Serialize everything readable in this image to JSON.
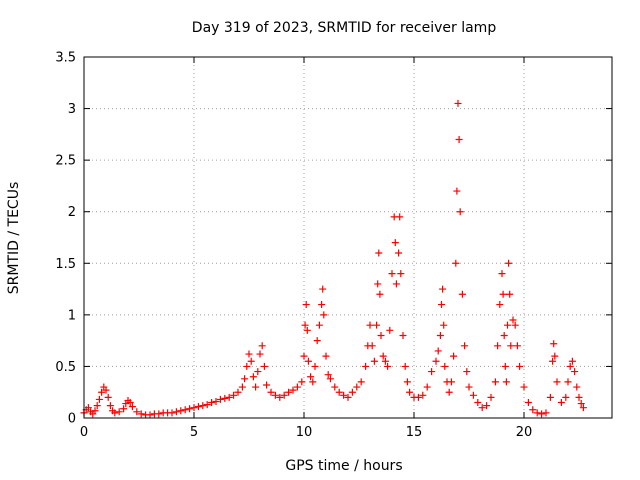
{
  "chart_data": {
    "type": "scatter",
    "title": "Day 319 of 2023, SRMTID for receiver lamp",
    "xlabel": "GPS time / hours",
    "ylabel": "SRMTID / TECUs",
    "xlim": [
      0,
      24
    ],
    "ylim": [
      0,
      3.5
    ],
    "xticks": [
      0,
      5,
      10,
      15,
      20
    ],
    "xtick_labels": [
      "0",
      "5",
      "10",
      "15",
      "20"
    ],
    "yticks": [
      0,
      0.5,
      1,
      1.5,
      2,
      2.5,
      3,
      3.5
    ],
    "ytick_labels": [
      "0",
      "0.5",
      "1",
      "1.5",
      "2",
      "2.5",
      "3",
      "3.5"
    ],
    "grid": true,
    "marker": "+",
    "colors": {
      "marker": "#ff0000",
      "grid": "#a0a0a0",
      "axes": "#000000"
    },
    "series": [
      {
        "name": "SRMTID",
        "points": [
          [
            0.0,
            0.05
          ],
          [
            0.1,
            0.08
          ],
          [
            0.2,
            0.1
          ],
          [
            0.3,
            0.06
          ],
          [
            0.4,
            0.04
          ],
          [
            0.5,
            0.07
          ],
          [
            0.6,
            0.12
          ],
          [
            0.7,
            0.18
          ],
          [
            0.8,
            0.25
          ],
          [
            0.9,
            0.3
          ],
          [
            1.0,
            0.27
          ],
          [
            1.1,
            0.2
          ],
          [
            1.2,
            0.12
          ],
          [
            1.3,
            0.07
          ],
          [
            1.4,
            0.05
          ],
          [
            1.6,
            0.06
          ],
          [
            1.8,
            0.09
          ],
          [
            1.9,
            0.14
          ],
          [
            2.0,
            0.17
          ],
          [
            2.1,
            0.15
          ],
          [
            2.2,
            0.11
          ],
          [
            2.4,
            0.06
          ],
          [
            2.6,
            0.04
          ],
          [
            2.8,
            0.03
          ],
          [
            3.0,
            0.03
          ],
          [
            3.2,
            0.04
          ],
          [
            3.4,
            0.04
          ],
          [
            3.6,
            0.05
          ],
          [
            3.8,
            0.05
          ],
          [
            4.0,
            0.05
          ],
          [
            4.2,
            0.06
          ],
          [
            4.4,
            0.07
          ],
          [
            4.6,
            0.08
          ],
          [
            4.8,
            0.09
          ],
          [
            5.0,
            0.1
          ],
          [
            5.2,
            0.11
          ],
          [
            5.4,
            0.12
          ],
          [
            5.6,
            0.13
          ],
          [
            5.8,
            0.15
          ],
          [
            6.0,
            0.16
          ],
          [
            6.2,
            0.18
          ],
          [
            6.4,
            0.19
          ],
          [
            6.6,
            0.2
          ],
          [
            6.8,
            0.22
          ],
          [
            7.0,
            0.25
          ],
          [
            7.2,
            0.3
          ],
          [
            7.3,
            0.38
          ],
          [
            7.4,
            0.5
          ],
          [
            7.5,
            0.62
          ],
          [
            7.6,
            0.55
          ],
          [
            7.7,
            0.4
          ],
          [
            7.8,
            0.3
          ],
          [
            7.9,
            0.45
          ],
          [
            8.0,
            0.62
          ],
          [
            8.1,
            0.7
          ],
          [
            8.2,
            0.5
          ],
          [
            8.3,
            0.32
          ],
          [
            8.5,
            0.25
          ],
          [
            8.7,
            0.22
          ],
          [
            8.9,
            0.2
          ],
          [
            9.1,
            0.22
          ],
          [
            9.3,
            0.25
          ],
          [
            9.5,
            0.27
          ],
          [
            9.7,
            0.3
          ],
          [
            9.9,
            0.35
          ],
          [
            10.0,
            0.6
          ],
          [
            10.05,
            0.9
          ],
          [
            10.1,
            1.1
          ],
          [
            10.15,
            0.85
          ],
          [
            10.2,
            0.55
          ],
          [
            10.3,
            0.4
          ],
          [
            10.4,
            0.35
          ],
          [
            10.5,
            0.5
          ],
          [
            10.6,
            0.75
          ],
          [
            10.7,
            0.9
          ],
          [
            10.8,
            1.1
          ],
          [
            10.85,
            1.25
          ],
          [
            10.9,
            1.0
          ],
          [
            11.0,
            0.6
          ],
          [
            11.1,
            0.42
          ],
          [
            11.2,
            0.38
          ],
          [
            11.4,
            0.3
          ],
          [
            11.6,
            0.25
          ],
          [
            11.8,
            0.22
          ],
          [
            12.0,
            0.2
          ],
          [
            12.2,
            0.25
          ],
          [
            12.4,
            0.3
          ],
          [
            12.6,
            0.35
          ],
          [
            12.8,
            0.5
          ],
          [
            12.9,
            0.7
          ],
          [
            13.0,
            0.9
          ],
          [
            13.1,
            0.7
          ],
          [
            13.2,
            0.55
          ],
          [
            13.3,
            0.9
          ],
          [
            13.35,
            1.3
          ],
          [
            13.4,
            1.6
          ],
          [
            13.45,
            1.2
          ],
          [
            13.5,
            0.8
          ],
          [
            13.6,
            0.6
          ],
          [
            13.7,
            0.55
          ],
          [
            13.8,
            0.5
          ],
          [
            13.9,
            0.85
          ],
          [
            14.0,
            1.4
          ],
          [
            14.1,
            1.95
          ],
          [
            14.15,
            1.7
          ],
          [
            14.2,
            1.3
          ],
          [
            14.3,
            1.6
          ],
          [
            14.35,
            1.95
          ],
          [
            14.4,
            1.4
          ],
          [
            14.5,
            0.8
          ],
          [
            14.6,
            0.5
          ],
          [
            14.7,
            0.35
          ],
          [
            14.8,
            0.25
          ],
          [
            15.0,
            0.2
          ],
          [
            15.2,
            0.2
          ],
          [
            15.4,
            0.22
          ],
          [
            15.6,
            0.3
          ],
          [
            15.8,
            0.45
          ],
          [
            16.0,
            0.55
          ],
          [
            16.1,
            0.65
          ],
          [
            16.2,
            0.8
          ],
          [
            16.25,
            1.1
          ],
          [
            16.3,
            1.25
          ],
          [
            16.35,
            0.9
          ],
          [
            16.4,
            0.5
          ],
          [
            16.5,
            0.35
          ],
          [
            16.6,
            0.25
          ],
          [
            16.7,
            0.35
          ],
          [
            16.8,
            0.6
          ],
          [
            16.9,
            1.5
          ],
          [
            16.95,
            2.2
          ],
          [
            17.0,
            3.05
          ],
          [
            17.05,
            2.7
          ],
          [
            17.1,
            2.0
          ],
          [
            17.2,
            1.2
          ],
          [
            17.3,
            0.7
          ],
          [
            17.4,
            0.45
          ],
          [
            17.5,
            0.3
          ],
          [
            17.7,
            0.22
          ],
          [
            17.9,
            0.15
          ],
          [
            18.1,
            0.1
          ],
          [
            18.3,
            0.12
          ],
          [
            18.5,
            0.2
          ],
          [
            18.7,
            0.35
          ],
          [
            18.8,
            0.7
          ],
          [
            18.9,
            1.1
          ],
          [
            19.0,
            1.4
          ],
          [
            19.05,
            1.2
          ],
          [
            19.1,
            0.8
          ],
          [
            19.15,
            0.5
          ],
          [
            19.2,
            0.35
          ],
          [
            19.25,
            0.9
          ],
          [
            19.3,
            1.5
          ],
          [
            19.35,
            1.2
          ],
          [
            19.4,
            0.7
          ],
          [
            19.5,
            0.95
          ],
          [
            19.6,
            0.9
          ],
          [
            19.7,
            0.7
          ],
          [
            19.8,
            0.5
          ],
          [
            20.0,
            0.3
          ],
          [
            20.2,
            0.15
          ],
          [
            20.4,
            0.08
          ],
          [
            20.6,
            0.05
          ],
          [
            20.8,
            0.04
          ],
          [
            21.0,
            0.05
          ],
          [
            21.2,
            0.2
          ],
          [
            21.3,
            0.55
          ],
          [
            21.35,
            0.72
          ],
          [
            21.4,
            0.6
          ],
          [
            21.5,
            0.35
          ],
          [
            21.7,
            0.15
          ],
          [
            21.9,
            0.2
          ],
          [
            22.0,
            0.35
          ],
          [
            22.1,
            0.5
          ],
          [
            22.2,
            0.55
          ],
          [
            22.3,
            0.45
          ],
          [
            22.4,
            0.3
          ],
          [
            22.5,
            0.2
          ],
          [
            22.6,
            0.14
          ],
          [
            22.7,
            0.1
          ]
        ]
      }
    ]
  }
}
